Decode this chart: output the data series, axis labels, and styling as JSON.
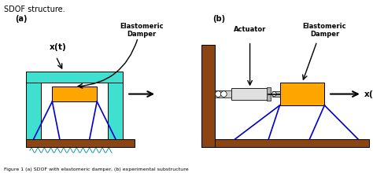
{
  "label_a": "(a)",
  "label_b": "(b)",
  "bg_color": "#ffffff",
  "brown": "#8B4513",
  "cyan": "#40E0D0",
  "orange": "#FFA500",
  "blue_line": "#0000CC",
  "text_color": "#000000",
  "caption": "Figure 1 (a) SDOF with elastomeric damper, (b) experimental substructure"
}
